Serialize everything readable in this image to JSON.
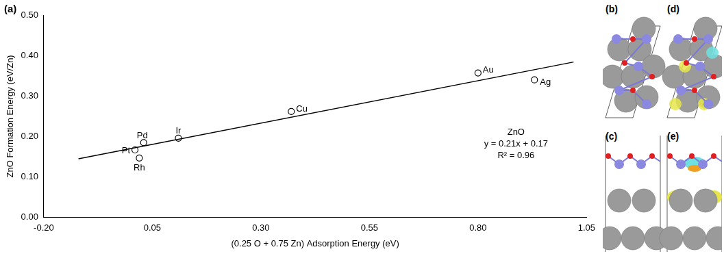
{
  "chart_data": {
    "type": "scatter",
    "panel_label": "(a)",
    "x_label": "(0.25 O + 0.75 Zn) Adsorption Energy (eV)",
    "y_label": "ZnO Formation Energy (eV/Zn)",
    "points": {
      "labels": [
        "Au",
        "Ag",
        "Cu",
        "Ir",
        "Pd",
        "Pt",
        "Rh"
      ],
      "x": [
        0.8,
        0.93,
        0.37,
        0.11,
        0.03,
        0.01,
        0.02
      ],
      "values": [
        0.357,
        0.34,
        0.262,
        0.196,
        0.185,
        0.167,
        0.147
      ],
      "marker": "circle",
      "color": "#000000"
    },
    "trendline": {
      "x": [
        -0.12,
        1.02
      ],
      "values": [
        0.145,
        0.384
      ],
      "line_style": "solid",
      "color": "#000000"
    },
    "annotations": [
      "ZnO",
      "y = 0.21x + 0.17",
      "R² = 0.96"
    ],
    "xlim": [
      -0.2,
      1.05
    ],
    "xticks": [
      {
        "value": -0.2,
        "label": "-0.20"
      },
      {
        "value": 0.05,
        "label": "0.05"
      },
      {
        "value": 0.3,
        "label": "0.30"
      },
      {
        "value": 0.55,
        "label": "0.55"
      },
      {
        "value": 0.8,
        "label": "0.80"
      },
      {
        "value": 1.05,
        "label": "1.05"
      }
    ],
    "ylim": [
      0,
      0.5
    ],
    "yticks": [
      {
        "value": 0,
        "label": "0.00"
      },
      {
        "value": 0.1,
        "label": "0.10"
      },
      {
        "value": 0.2,
        "label": "0.20"
      },
      {
        "value": 0.3,
        "label": "0.30"
      },
      {
        "value": 0.4,
        "label": "0.40"
      },
      {
        "value": 0.5,
        "label": "0.50"
      }
    ],
    "grid": false
  },
  "panels": [
    "(b)",
    "(c)",
    "(d)",
    "(e)"
  ]
}
